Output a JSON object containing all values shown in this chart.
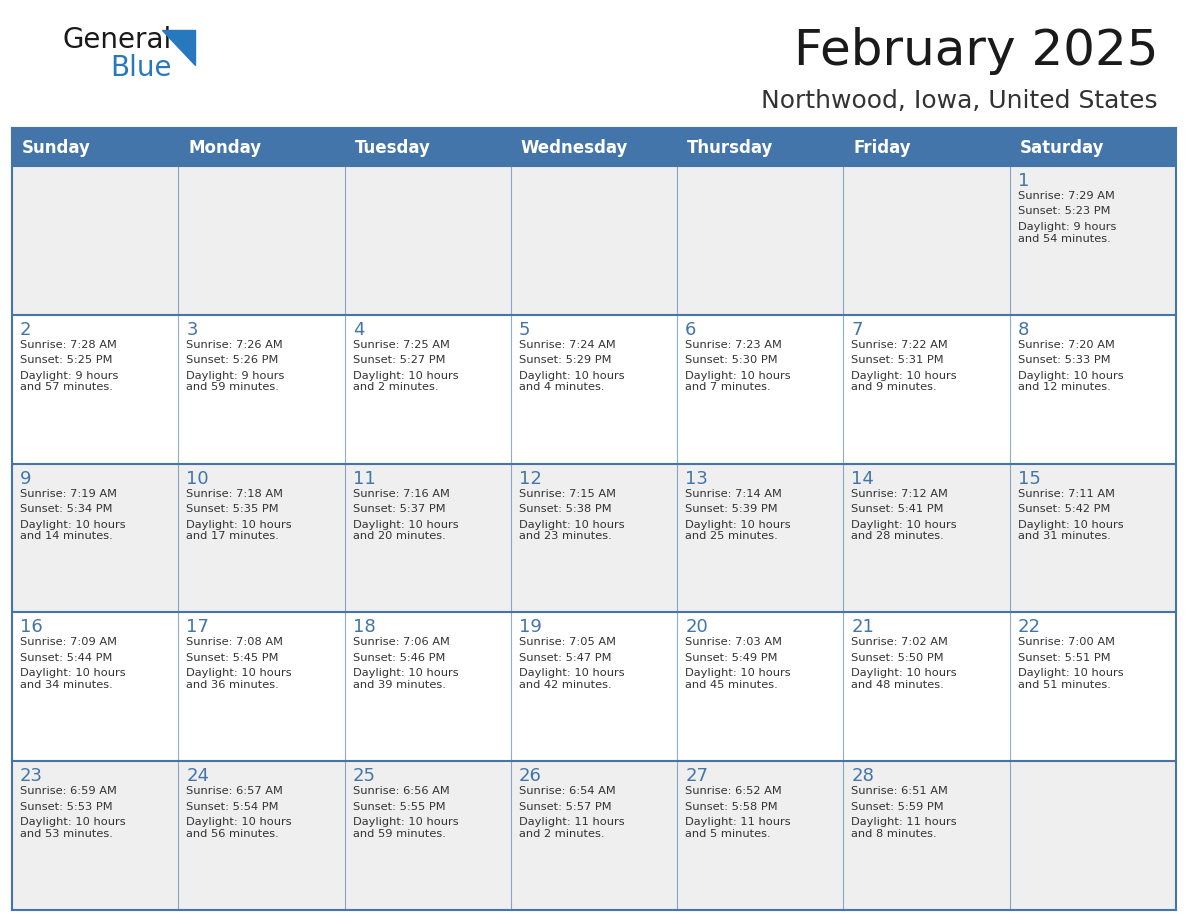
{
  "title": "February 2025",
  "subtitle": "Northwood, Iowa, United States",
  "header_bg": "#4375AA",
  "header_text_color": "#FFFFFF",
  "cell_bg_odd": "#EFEFEF",
  "cell_bg_even": "#FFFFFF",
  "border_color": "#4375AA",
  "day_headers": [
    "Sunday",
    "Monday",
    "Tuesday",
    "Wednesday",
    "Thursday",
    "Friday",
    "Saturday"
  ],
  "title_color": "#1a1a1a",
  "subtitle_color": "#333333",
  "day_number_color": "#4375AA",
  "info_color": "#333333",
  "logo_general_color": "#1a1a1a",
  "logo_blue_color": "#2878BE",
  "weeks": [
    [
      {
        "day": "",
        "sunrise": "",
        "sunset": "",
        "daylight": ""
      },
      {
        "day": "",
        "sunrise": "",
        "sunset": "",
        "daylight": ""
      },
      {
        "day": "",
        "sunrise": "",
        "sunset": "",
        "daylight": ""
      },
      {
        "day": "",
        "sunrise": "",
        "sunset": "",
        "daylight": ""
      },
      {
        "day": "",
        "sunrise": "",
        "sunset": "",
        "daylight": ""
      },
      {
        "day": "",
        "sunrise": "",
        "sunset": "",
        "daylight": ""
      },
      {
        "day": "1",
        "sunrise": "7:29 AM",
        "sunset": "5:23 PM",
        "daylight": "9 hours\nand 54 minutes."
      }
    ],
    [
      {
        "day": "2",
        "sunrise": "7:28 AM",
        "sunset": "5:25 PM",
        "daylight": "9 hours\nand 57 minutes."
      },
      {
        "day": "3",
        "sunrise": "7:26 AM",
        "sunset": "5:26 PM",
        "daylight": "9 hours\nand 59 minutes."
      },
      {
        "day": "4",
        "sunrise": "7:25 AM",
        "sunset": "5:27 PM",
        "daylight": "10 hours\nand 2 minutes."
      },
      {
        "day": "5",
        "sunrise": "7:24 AM",
        "sunset": "5:29 PM",
        "daylight": "10 hours\nand 4 minutes."
      },
      {
        "day": "6",
        "sunrise": "7:23 AM",
        "sunset": "5:30 PM",
        "daylight": "10 hours\nand 7 minutes."
      },
      {
        "day": "7",
        "sunrise": "7:22 AM",
        "sunset": "5:31 PM",
        "daylight": "10 hours\nand 9 minutes."
      },
      {
        "day": "8",
        "sunrise": "7:20 AM",
        "sunset": "5:33 PM",
        "daylight": "10 hours\nand 12 minutes."
      }
    ],
    [
      {
        "day": "9",
        "sunrise": "7:19 AM",
        "sunset": "5:34 PM",
        "daylight": "10 hours\nand 14 minutes."
      },
      {
        "day": "10",
        "sunrise": "7:18 AM",
        "sunset": "5:35 PM",
        "daylight": "10 hours\nand 17 minutes."
      },
      {
        "day": "11",
        "sunrise": "7:16 AM",
        "sunset": "5:37 PM",
        "daylight": "10 hours\nand 20 minutes."
      },
      {
        "day": "12",
        "sunrise": "7:15 AM",
        "sunset": "5:38 PM",
        "daylight": "10 hours\nand 23 minutes."
      },
      {
        "day": "13",
        "sunrise": "7:14 AM",
        "sunset": "5:39 PM",
        "daylight": "10 hours\nand 25 minutes."
      },
      {
        "day": "14",
        "sunrise": "7:12 AM",
        "sunset": "5:41 PM",
        "daylight": "10 hours\nand 28 minutes."
      },
      {
        "day": "15",
        "sunrise": "7:11 AM",
        "sunset": "5:42 PM",
        "daylight": "10 hours\nand 31 minutes."
      }
    ],
    [
      {
        "day": "16",
        "sunrise": "7:09 AM",
        "sunset": "5:44 PM",
        "daylight": "10 hours\nand 34 minutes."
      },
      {
        "day": "17",
        "sunrise": "7:08 AM",
        "sunset": "5:45 PM",
        "daylight": "10 hours\nand 36 minutes."
      },
      {
        "day": "18",
        "sunrise": "7:06 AM",
        "sunset": "5:46 PM",
        "daylight": "10 hours\nand 39 minutes."
      },
      {
        "day": "19",
        "sunrise": "7:05 AM",
        "sunset": "5:47 PM",
        "daylight": "10 hours\nand 42 minutes."
      },
      {
        "day": "20",
        "sunrise": "7:03 AM",
        "sunset": "5:49 PM",
        "daylight": "10 hours\nand 45 minutes."
      },
      {
        "day": "21",
        "sunrise": "7:02 AM",
        "sunset": "5:50 PM",
        "daylight": "10 hours\nand 48 minutes."
      },
      {
        "day": "22",
        "sunrise": "7:00 AM",
        "sunset": "5:51 PM",
        "daylight": "10 hours\nand 51 minutes."
      }
    ],
    [
      {
        "day": "23",
        "sunrise": "6:59 AM",
        "sunset": "5:53 PM",
        "daylight": "10 hours\nand 53 minutes."
      },
      {
        "day": "24",
        "sunrise": "6:57 AM",
        "sunset": "5:54 PM",
        "daylight": "10 hours\nand 56 minutes."
      },
      {
        "day": "25",
        "sunrise": "6:56 AM",
        "sunset": "5:55 PM",
        "daylight": "10 hours\nand 59 minutes."
      },
      {
        "day": "26",
        "sunrise": "6:54 AM",
        "sunset": "5:57 PM",
        "daylight": "11 hours\nand 2 minutes."
      },
      {
        "day": "27",
        "sunrise": "6:52 AM",
        "sunset": "5:58 PM",
        "daylight": "11 hours\nand 5 minutes."
      },
      {
        "day": "28",
        "sunrise": "6:51 AM",
        "sunset": "5:59 PM",
        "daylight": "11 hours\nand 8 minutes."
      },
      {
        "day": "",
        "sunrise": "",
        "sunset": "",
        "daylight": ""
      }
    ]
  ]
}
